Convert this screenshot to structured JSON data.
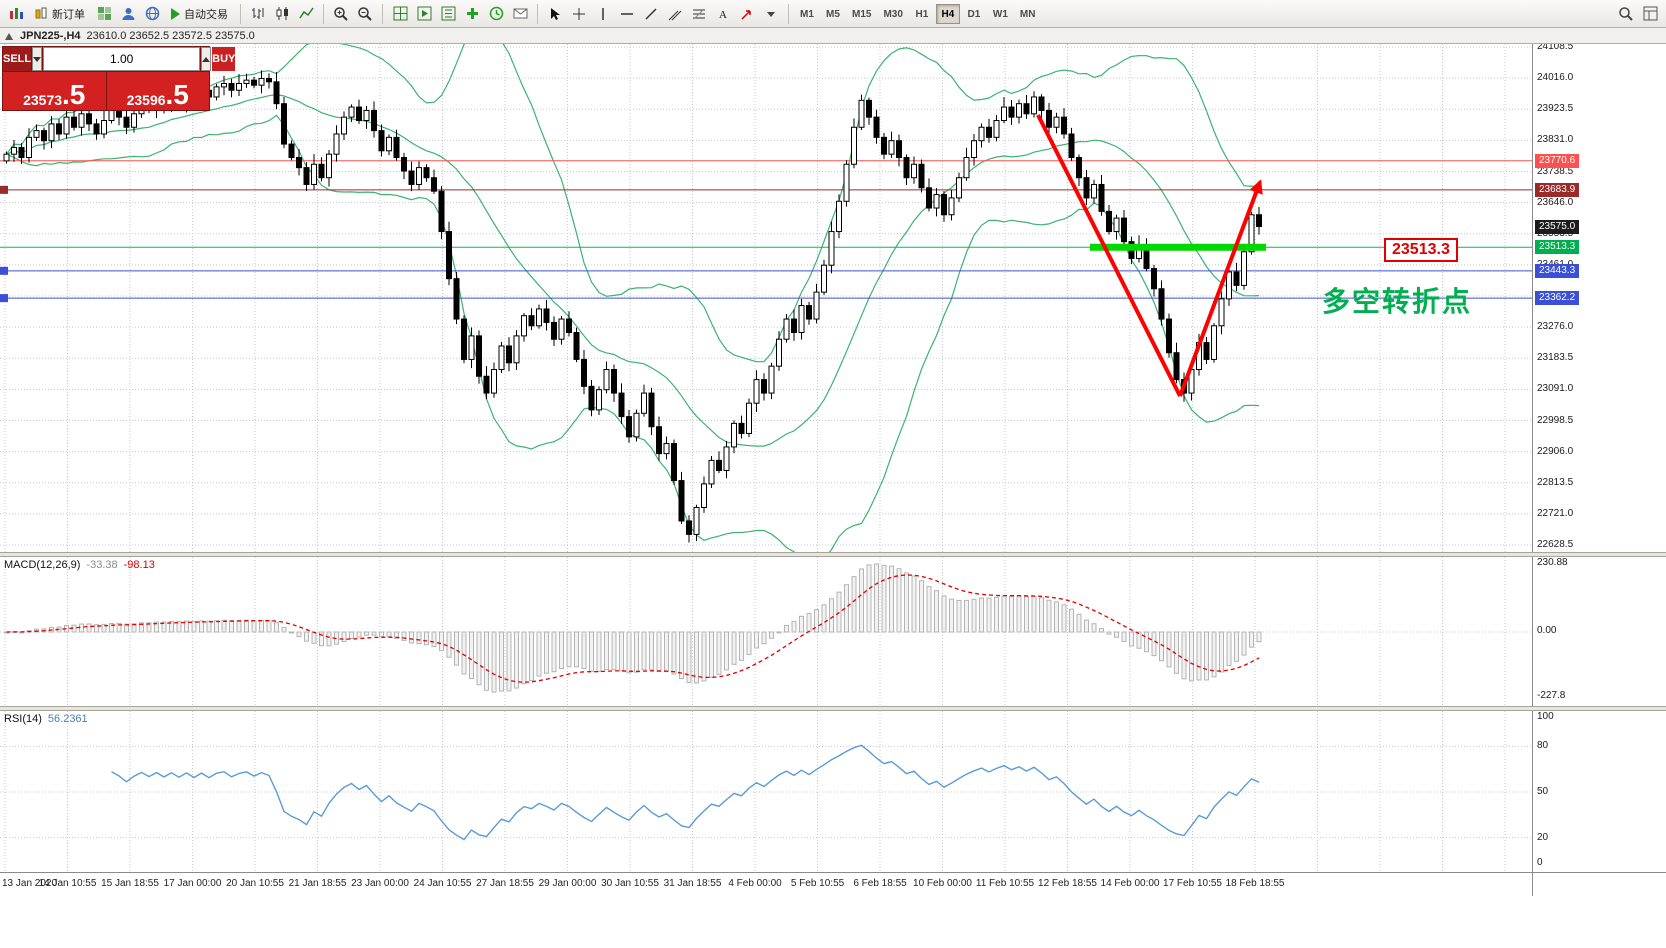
{
  "toolbar": {
    "new_order_label": "新订单",
    "auto_trading_label": "自动交易",
    "timeframes": [
      "M1",
      "M5",
      "M15",
      "M30",
      "H1",
      "H4",
      "D1",
      "W1",
      "MN"
    ],
    "active_timeframe": "H4"
  },
  "chart_header": {
    "symbol": "JPN225-,H4",
    "ohlc": "23610.0 23652.5 23572.5 23575.0"
  },
  "trade_panel": {
    "sell_label": "SELL",
    "buy_label": "BUY",
    "volume": "1.00",
    "sell_price_main": "23573",
    "sell_price_pips": ".5",
    "buy_price_main": "23596",
    "buy_price_pips": ".5"
  },
  "annotations": {
    "level_label": "23513.3",
    "note_text": "多空转折点",
    "note_color": "#00b050",
    "arrow_color": "#ff0000",
    "level_line_color": "#00d800"
  },
  "price_axis": {
    "top_price": 24108.5,
    "step": 92.5,
    "count": 17,
    "badges": [
      {
        "text": "23770.6",
        "price": 23770.6,
        "color": "#ff5050"
      },
      {
        "text": "23683.9",
        "price": 23683.9,
        "color": "#9a2b2b"
      },
      {
        "text": "23575.0",
        "price": 23575.0,
        "color": "#1c1c1c"
      },
      {
        "text": "23513.3",
        "price": 23513.3,
        "color": "#00b050"
      },
      {
        "text": "23443.3",
        "price": 23443.3,
        "color": "#3b50d6"
      },
      {
        "text": "23362.2",
        "price": 23362.2,
        "color": "#3b50d6"
      }
    ]
  },
  "hlines": [
    {
      "price": 23770.6,
      "color": "#ff5050"
    },
    {
      "price": 23683.9,
      "color": "#9a2b2b"
    },
    {
      "price": 23513.3,
      "color": "#00c040"
    },
    {
      "price": 23443.3,
      "color": "#3b50d6"
    },
    {
      "price": 23362.2,
      "color": "#3b50d6"
    }
  ],
  "macd_panel": {
    "label": "MACD(12,26,9)",
    "value_main": "-33.38",
    "value_signal": "-98.13",
    "scale": [
      "230.88",
      "0.00",
      "-227.8"
    ]
  },
  "rsi_panel": {
    "label": "RSI(14)",
    "value": "56.2361",
    "scale": [
      100,
      80,
      50,
      20,
      0
    ]
  },
  "time_axis": [
    "13 Jan 2020",
    "14 Jan 10:55",
    "15 Jan 18:55",
    "17 Jan 00:00",
    "20 Jan 10:55",
    "21 Jan 18:55",
    "23 Jan 00:00",
    "24 Jan 10:55",
    "27 Jan 18:55",
    "29 Jan 00:00",
    "30 Jan 10:55",
    "31 Jan 18:55",
    "4 Feb 00:00",
    "5 Feb 10:55",
    "6 Feb 18:55",
    "10 Feb 00:00",
    "11 Feb 10:55",
    "12 Feb 18:55",
    "14 Feb 00:00",
    "17 Feb 10:55",
    "18 Feb 18:55"
  ],
  "chart_data": {
    "type": "candlestick",
    "symbol": "JPN225-",
    "timeframe": "H4",
    "ylim": [
      22628.5,
      24108.5
    ],
    "indicators": [
      "Bollinger Bands(20,2)",
      "MACD(12,26,9)",
      "RSI(14)"
    ],
    "closes": [
      23790,
      23810,
      23780,
      23840,
      23860,
      23830,
      23880,
      23850,
      23900,
      23870,
      23910,
      23880,
      23850,
      23890,
      23920,
      23900,
      23870,
      23910,
      23940,
      23920,
      23950,
      23930,
      23960,
      23940,
      23970,
      23950,
      23980,
      23960,
      23990,
      24000,
      23980,
      24000,
      24010,
      23995,
      24015,
      24005,
      23940,
      23820,
      23780,
      23750,
      23700,
      23760,
      23720,
      23790,
      23850,
      23900,
      23930,
      23890,
      23920,
      23860,
      23800,
      23840,
      23780,
      23740,
      23700,
      23750,
      23720,
      23680,
      23560,
      23420,
      23300,
      23180,
      23250,
      23130,
      23080,
      23150,
      23220,
      23170,
      23250,
      23310,
      23280,
      23330,
      23290,
      23240,
      23300,
      23260,
      23180,
      23100,
      23030,
      23090,
      23150,
      23080,
      23010,
      22950,
      23020,
      23080,
      22980,
      22900,
      22930,
      22820,
      22700,
      22660,
      22740,
      22810,
      22880,
      22850,
      22920,
      22990,
      22960,
      23050,
      23120,
      23080,
      23160,
      23240,
      23300,
      23260,
      23340,
      23300,
      23380,
      23460,
      23560,
      23650,
      23760,
      23870,
      23950,
      23900,
      23840,
      23790,
      23830,
      23780,
      23720,
      23760,
      23690,
      23630,
      23670,
      23610,
      23660,
      23720,
      23780,
      23830,
      23870,
      23840,
      23890,
      23930,
      23900,
      23940,
      23910,
      23960,
      23920,
      23870,
      23900,
      23850,
      23780,
      23720,
      23660,
      23700,
      23620,
      23560,
      23600,
      23530,
      23480,
      23520,
      23450,
      23390,
      23300,
      23200,
      23120,
      23080,
      23150,
      23230,
      23180,
      23280,
      23360,
      23440,
      23400,
      23500,
      23610,
      23575
    ]
  }
}
